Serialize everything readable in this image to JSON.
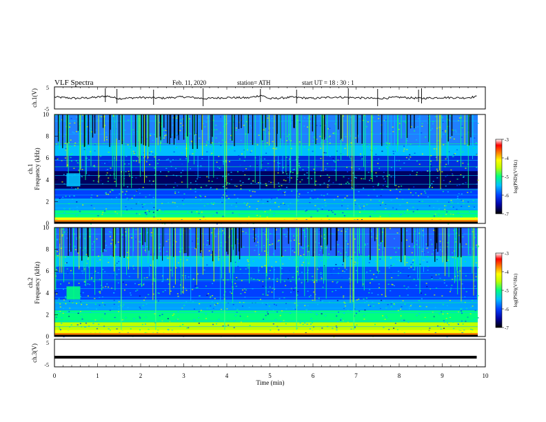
{
  "header": {
    "title": "VLF  Spectra",
    "date": "Feb. 11, 2020",
    "station": "station= ATH",
    "start_time": "start  UT  =    18 : 30 : 1"
  },
  "chart_data": [
    {
      "type": "line",
      "panel": "ch1",
      "ylabel": "ch.1(V)",
      "ylim": [
        -5,
        5
      ],
      "y_ticks": [
        "5",
        "-5"
      ],
      "xlim": [
        0,
        10
      ],
      "approx_level": 0,
      "note_values_estimated": true,
      "x": [
        0,
        0.5,
        1.0,
        1.2,
        1.5,
        2.0,
        2.5,
        3.0,
        3.5,
        4.0,
        4.5,
        4.8,
        5.0,
        5.5,
        6.0,
        6.5,
        7.0,
        7.5,
        8.0,
        8.5,
        9.0,
        9.5,
        9.8
      ],
      "y": [
        0.4,
        -0.2,
        0.3,
        0.9,
        -0.3,
        0.2,
        -0.1,
        0.5,
        -0.3,
        0.2,
        0.0,
        1.2,
        -0.4,
        0.3,
        -0.2,
        0.4,
        0.1,
        -0.3,
        0.3,
        -0.2,
        0.2,
        0.0,
        0.6
      ]
    },
    {
      "type": "heatmap",
      "panel": "ch1-spectrogram",
      "ylabel_top": "ch.1",
      "ylabel": "Frequency  (kHz)",
      "ylim": [
        0,
        10
      ],
      "y_ticks": [
        "0",
        "2",
        "4",
        "6",
        "8",
        "10"
      ],
      "xlim": [
        0,
        10
      ],
      "colorbar": {
        "label": "log(PSD)(V²/Hz)",
        "range": [
          -7,
          -3
        ],
        "ticks": [
          "-3",
          "-4",
          "-5",
          "-6",
          "-7"
        ]
      }
    },
    {
      "type": "heatmap",
      "panel": "ch2-spectrogram",
      "ylabel_top": "ch.2",
      "ylabel": "Frequency  (kHz)",
      "ylim": [
        0,
        10
      ],
      "y_ticks": [
        "0",
        "2",
        "4",
        "6",
        "8",
        "10"
      ],
      "xlim": [
        0,
        10
      ],
      "colorbar": {
        "label": "log(PSD)(V²/Hz)",
        "range": [
          -7,
          -3
        ],
        "ticks": [
          "-3",
          "-4",
          "-5",
          "-6",
          "-7"
        ]
      }
    },
    {
      "type": "line",
      "panel": "ch3",
      "ylabel": "ch.3(V)",
      "ylim": [
        -5,
        5
      ],
      "y_ticks": [
        "5",
        "-5"
      ],
      "xlim": [
        0,
        10
      ],
      "x": [
        0,
        9.8
      ],
      "y": [
        -1.5,
        -1.5
      ]
    }
  ],
  "x_axis": {
    "label": "Time  (min)",
    "ticks": [
      "0",
      "1",
      "2",
      "3",
      "4",
      "5",
      "6",
      "7",
      "8",
      "9",
      "10"
    ]
  },
  "colors": {
    "scale": [
      "#000000",
      "#0000a0",
      "#0040ff",
      "#00c0ff",
      "#00ff80",
      "#c0ff00",
      "#ffff00",
      "#ff8000",
      "#ff0000",
      "#ffffff"
    ]
  }
}
